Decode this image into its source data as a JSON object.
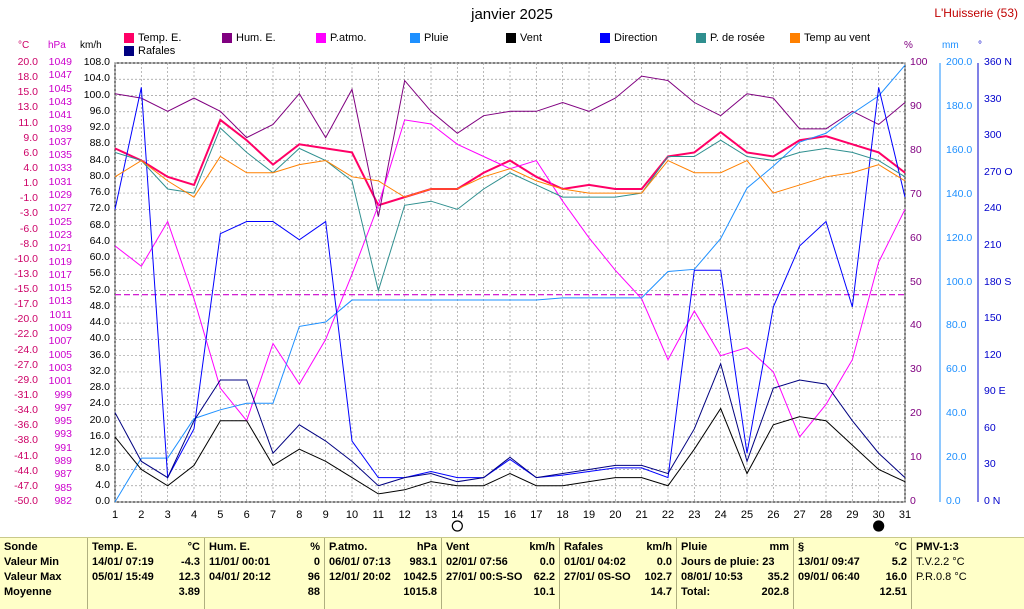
{
  "header": {
    "title": "janvier 2025",
    "station": "L'Huisserie (53)"
  },
  "legend": [
    {
      "label": "Temp. E.",
      "color": "#ff0066"
    },
    {
      "label": "Hum. E.",
      "color": "#800080"
    },
    {
      "label": "P.atmo.",
      "color": "#ff00ff"
    },
    {
      "label": "Pluie",
      "color": "#1e90ff"
    },
    {
      "label": "Vent",
      "color": "#000000"
    },
    {
      "label": "Direction",
      "color": "#0000ff"
    },
    {
      "label": "P. de rosée",
      "color": "#2f8f8f"
    },
    {
      "label": "Temp au vent",
      "color": "#ff8000"
    },
    {
      "label": "Rafales",
      "color": "#000080"
    }
  ],
  "units": {
    "temp": "°C",
    "pressure": "hPa",
    "wind": "km/h",
    "hum": "%",
    "rain": "mm",
    "dir": "°"
  },
  "colors": {
    "temp": "#cc0066",
    "pressure": "#cc00cc",
    "hum": "#800080",
    "rain": "#1e90ff",
    "dir": "#0000cc",
    "grid": "#888888",
    "summary_bg": "#ffffc8"
  },
  "chart_data": {
    "type": "line",
    "title": "janvier 2025",
    "x": [
      1,
      2,
      3,
      4,
      5,
      6,
      7,
      8,
      9,
      10,
      11,
      12,
      13,
      14,
      15,
      16,
      17,
      18,
      19,
      20,
      21,
      22,
      23,
      24,
      25,
      26,
      27,
      28,
      29,
      30,
      31
    ],
    "axes": {
      "temp_c": {
        "min": -50.0,
        "max": 20.0,
        "ticks": [
          "20.0",
          "18.0",
          "15.0",
          "13.0",
          "11.0",
          "9.0",
          "6.0",
          "4.0",
          "1.0",
          "-1.0",
          "-3.0",
          "-6.0",
          "-8.0",
          "-10.0",
          "-13.0",
          "-15.0",
          "-17.0",
          "-20.0",
          "-22.0",
          "-24.0",
          "-27.0",
          "-29.0",
          "-31.0",
          "-34.0",
          "-36.0",
          "-38.0",
          "-41.0",
          "-44.0",
          "-47.0",
          "-50.0"
        ]
      },
      "pressure_hpa": {
        "min": 982,
        "max": 1049,
        "ticks": [
          "1049",
          "1047",
          "1045",
          "1043",
          "1041",
          "1039",
          "1037",
          "1035",
          "1033",
          "1031",
          "1029",
          "1027",
          "1025",
          "1023",
          "1021",
          "1019",
          "1017",
          "1015",
          "1013",
          "1011",
          "1009",
          "1007",
          "1005",
          "1003",
          "1001",
          "999",
          "997",
          "995",
          "993",
          "991",
          "989",
          "987",
          "985",
          "982"
        ]
      },
      "wind_kmh": {
        "min": 0,
        "max": 108,
        "step": 4
      },
      "hum_pct": {
        "min": 0,
        "max": 100,
        "ticks": [
          "100",
          "90",
          "80",
          "70",
          "60",
          "50",
          "40",
          "30",
          "20",
          "10",
          "0"
        ]
      },
      "rain_mm": {
        "min": 0,
        "max": 200,
        "ticks": [
          "200.0",
          "180.0",
          "160.0",
          "140.0",
          "120.0",
          "100.0",
          "80.0",
          "60.0",
          "40.0",
          "20.0",
          "0.0"
        ]
      },
      "dir_deg": {
        "min": 0,
        "max": 360,
        "ticks": [
          "360 N",
          "330",
          "300",
          "270 O",
          "240",
          "210",
          "180 S",
          "150",
          "120",
          "90 E",
          "60",
          "30",
          "0 N"
        ]
      }
    },
    "series": [
      {
        "name": "Temp. E.",
        "axis": "wind_kmh",
        "color": "#ff0066",
        "width": 2,
        "values": [
          87,
          84,
          80,
          78,
          94,
          89,
          83,
          88,
          87,
          86,
          73,
          75,
          77,
          77,
          81,
          84,
          80,
          77,
          78,
          77,
          77,
          85,
          86,
          91,
          86,
          85,
          89,
          90,
          88,
          86,
          81
        ]
      },
      {
        "name": "Hum. E.",
        "axis": "hum_pct",
        "color": "#800080",
        "width": 1,
        "values": [
          93,
          92,
          89,
          92,
          89,
          83,
          86,
          93,
          83,
          94,
          65,
          96,
          89,
          84,
          88,
          89,
          89,
          91,
          89,
          92,
          97,
          96,
          91,
          88,
          93,
          92,
          85,
          85,
          89,
          86,
          91
        ]
      },
      {
        "name": "P.atmo.",
        "axis": "wind_kmh",
        "color": "#ff00ff",
        "width": 1,
        "values": [
          63,
          58,
          69,
          50,
          28,
          20,
          39,
          29,
          40,
          56,
          73,
          94,
          93,
          88,
          85,
          82,
          84,
          74,
          65,
          57,
          50,
          35,
          47,
          36,
          38,
          32,
          16,
          24,
          35,
          59,
          72
        ]
      },
      {
        "name": "Pluie",
        "axis": "rain_mm",
        "color": "#1e90ff",
        "width": 1,
        "values": [
          0,
          20,
          20,
          38,
          42,
          45,
          45,
          80,
          82,
          92,
          92,
          92,
          92,
          92,
          92,
          92,
          92,
          93,
          93,
          93,
          93,
          105,
          106,
          120,
          143,
          153,
          164,
          168,
          177,
          185,
          199
        ]
      },
      {
        "name": "Vent",
        "axis": "wind_kmh",
        "color": "#000000",
        "width": 1,
        "values": [
          16,
          8,
          4,
          9,
          20,
          20,
          9,
          13,
          10,
          6,
          2,
          3,
          5,
          4,
          4,
          7,
          4,
          4,
          5,
          6,
          6,
          4,
          13,
          23,
          7,
          19,
          21,
          20,
          14,
          8,
          5
        ]
      },
      {
        "name": "Direction",
        "axis": "dir_deg",
        "color": "#0000ff",
        "width": 1,
        "values": [
          240,
          340,
          20,
          60,
          220,
          230,
          230,
          215,
          230,
          50,
          20,
          20,
          25,
          20,
          20,
          35,
          20,
          22,
          25,
          28,
          28,
          20,
          190,
          190,
          40,
          160,
          210,
          230,
          160,
          340,
          250
        ]
      },
      {
        "name": "P. de rosée",
        "axis": "wind_kmh",
        "color": "#2f8f8f",
        "width": 1,
        "values": [
          86,
          84,
          77,
          76,
          92,
          86,
          81,
          87,
          84,
          79,
          52,
          73,
          74,
          72,
          77,
          81,
          78,
          75,
          75,
          75,
          76,
          85,
          85,
          89,
          85,
          84,
          86,
          87,
          86,
          84,
          80
        ]
      },
      {
        "name": "Temp au vent",
        "axis": "wind_kmh",
        "color": "#ff8000",
        "width": 1,
        "values": [
          80,
          84,
          79,
          75,
          85,
          81,
          81,
          83,
          84,
          80,
          79,
          75,
          77,
          77,
          80,
          82,
          79,
          77,
          76,
          76,
          76,
          84,
          81,
          81,
          84,
          76,
          78,
          80,
          81,
          83,
          79
        ]
      },
      {
        "name": "Rafales",
        "axis": "wind_kmh",
        "color": "#000080",
        "width": 1,
        "values": [
          22,
          10,
          6,
          20,
          30,
          30,
          12,
          19,
          15,
          10,
          4,
          6,
          7,
          5,
          6,
          11,
          6,
          7,
          8,
          9,
          9,
          7,
          18,
          34,
          10,
          28,
          30,
          29,
          20,
          12,
          6
        ]
      }
    ],
    "reference_line": {
      "axis": "wind_kmh",
      "value": 51,
      "style": "dashed",
      "color": "#cc00cc"
    },
    "moon_markers": [
      {
        "day": 14,
        "phase": "full"
      },
      {
        "day": 30,
        "phase": "new"
      }
    ]
  },
  "summary": {
    "labels": {
      "title": "Sonde",
      "min": "Valeur Min",
      "max": "Valeur Max",
      "mean": "Moyenne"
    },
    "temp": {
      "header": "Temp. E.",
      "unit": "°C",
      "min_date": "14/01/ 07:19",
      "min": "-4.3",
      "max_date": "05/01/ 15:49",
      "max": "12.3",
      "mean": "3.89"
    },
    "hum": {
      "header": "Hum. E.",
      "unit": "%",
      "min_date": "11/01/ 00:01",
      "min": "0",
      "max_date": "04/01/ 20:12",
      "max": "96",
      "mean": "88"
    },
    "patmo": {
      "header": "P.atmo.",
      "unit": "hPa",
      "min_date": "06/01/ 07:13",
      "min": "983.1",
      "max_date": "12/01/ 20:02",
      "max": "1042.5",
      "mean": "1015.8"
    },
    "vent": {
      "header": "Vent",
      "unit": "km/h",
      "min_date": "02/01/ 07:56",
      "min": "0.0",
      "max_date": "27/01/ 00:S-SO",
      "max": "62.2",
      "mean": "10.1"
    },
    "rafales": {
      "header": "Rafales",
      "unit": "km/h",
      "min_date": "01/01/ 04:02",
      "min": "0.0",
      "max_date": "27/01/ 0S-SO",
      "max": "102.7",
      "mean": "14.7"
    },
    "pluie": {
      "header": "Pluie",
      "unit": "mm",
      "r1_label": "Jours de pluie: 23",
      "r1_val": "",
      "r2_label": "08/01/ 10:53",
      "r2_val": "35.2",
      "r3_label": "Total:",
      "r3_val": "202.8"
    },
    "sect": {
      "header": "§",
      "unit": "°C",
      "min_date": "13/01/ 09:47",
      "min": "5.2",
      "max_date": "09/01/ 06:40",
      "max": "16.0",
      "mean": "12.51"
    },
    "pmv": {
      "header": "PMV-1:3",
      "r1": "T.V.2.2 °C",
      "r2": "P.R.0.8 °C"
    }
  }
}
